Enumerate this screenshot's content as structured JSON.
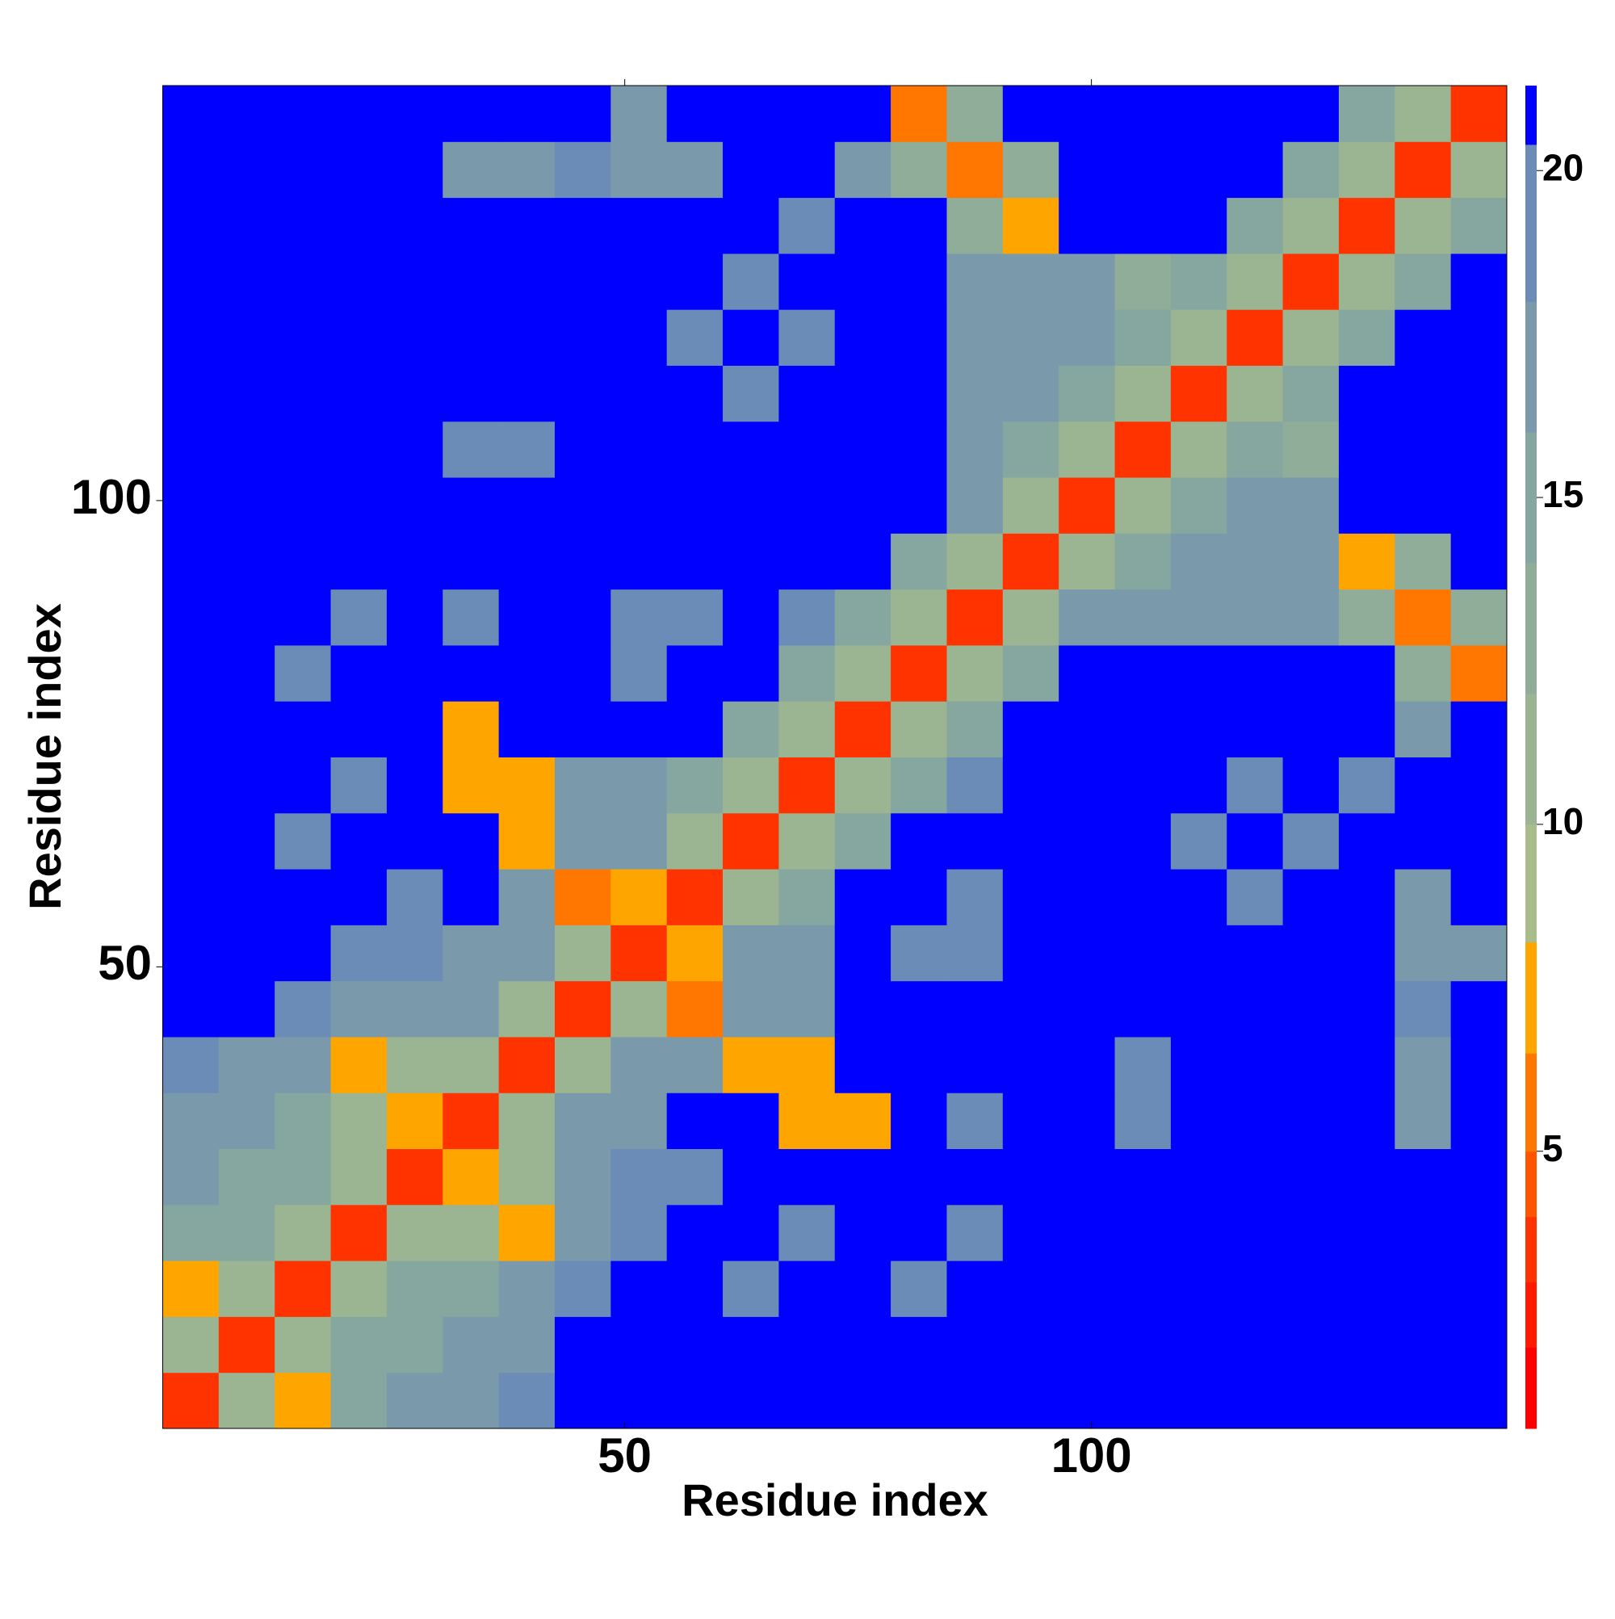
{
  "chart_data": {
    "type": "heatmap",
    "x_label": "Residue index",
    "y_label": "Residue index",
    "x": [
      3.5,
      9.5,
      15.5,
      21.5,
      27.5,
      33.5,
      39.5,
      45.5,
      51.5,
      57.5,
      63.5,
      69.5,
      75.5,
      81.5,
      87.5,
      93.5,
      99.5,
      105.5,
      111.5,
      117.5,
      123.5,
      129.5,
      135.5,
      141.5
    ],
    "y": [
      3.5,
      9.5,
      15.5,
      21.5,
      27.5,
      33.5,
      39.5,
      45.5,
      51.5,
      57.5,
      63.5,
      69.5,
      75.5,
      81.5,
      87.5,
      93.5,
      99.5,
      105.5,
      111.5,
      117.5,
      123.5,
      129.5,
      135.5,
      141.5
    ],
    "z": [
      [
        3,
        11,
        8,
        15,
        16,
        17,
        18,
        21,
        21,
        21,
        21,
        21,
        21,
        21,
        21,
        21,
        21,
        21,
        21,
        21,
        21,
        21,
        21,
        21
      ],
      [
        11,
        3,
        11,
        15,
        15,
        16,
        17,
        21,
        21,
        21,
        21,
        21,
        21,
        21,
        21,
        21,
        21,
        21,
        21,
        21,
        21,
        21,
        21,
        21
      ],
      [
        8,
        11,
        3,
        11,
        15,
        15,
        16,
        18,
        21,
        21,
        19,
        21,
        21,
        19,
        21,
        21,
        21,
        21,
        21,
        21,
        21,
        21,
        21,
        21
      ],
      [
        15,
        15,
        11,
        3,
        11,
        10,
        7,
        17,
        18,
        21,
        21,
        19,
        21,
        21,
        19,
        21,
        21,
        21,
        21,
        21,
        21,
        21,
        21,
        21
      ],
      [
        16,
        15,
        15,
        11,
        3,
        7,
        10,
        17,
        18,
        18,
        21,
        21,
        21,
        21,
        21,
        21,
        21,
        21,
        21,
        21,
        21,
        21,
        21,
        21
      ],
      [
        17,
        16,
        15,
        10,
        7,
        3,
        11,
        17,
        17,
        21,
        21,
        8,
        7,
        21,
        18,
        21,
        21,
        18,
        21,
        21,
        21,
        21,
        17,
        21
      ],
      [
        18,
        17,
        16,
        7,
        10,
        11,
        3,
        11,
        17,
        17,
        8,
        7,
        21,
        21,
        21,
        21,
        21,
        18,
        21,
        21,
        21,
        21,
        17,
        21
      ],
      [
        21,
        21,
        18,
        17,
        17,
        17,
        11,
        3,
        11,
        6,
        16,
        17,
        21,
        21,
        21,
        21,
        21,
        21,
        21,
        21,
        21,
        21,
        18,
        21
      ],
      [
        21,
        21,
        21,
        18,
        18,
        17,
        17,
        11,
        3,
        7,
        16,
        17,
        21,
        18,
        18,
        21,
        21,
        21,
        21,
        21,
        21,
        21,
        17,
        17
      ],
      [
        21,
        21,
        21,
        21,
        18,
        21,
        17,
        6,
        7,
        3,
        11,
        15,
        21,
        21,
        18,
        21,
        21,
        21,
        21,
        18,
        21,
        21,
        17,
        21
      ],
      [
        21,
        21,
        19,
        21,
        21,
        21,
        8,
        16,
        16,
        11,
        3,
        11,
        14,
        21,
        21,
        21,
        21,
        21,
        18,
        21,
        18,
        21,
        21,
        21
      ],
      [
        21,
        21,
        21,
        19,
        21,
        8,
        7,
        17,
        17,
        15,
        11,
        3,
        11,
        14,
        18,
        21,
        21,
        21,
        21,
        18,
        21,
        18,
        21,
        21
      ],
      [
        21,
        21,
        21,
        21,
        21,
        7,
        21,
        21,
        21,
        21,
        14,
        11,
        3,
        11,
        14,
        21,
        21,
        21,
        21,
        21,
        21,
        21,
        17,
        21
      ],
      [
        21,
        21,
        19,
        21,
        21,
        21,
        21,
        21,
        18,
        21,
        21,
        14,
        11,
        3,
        11,
        14,
        21,
        21,
        21,
        21,
        21,
        21,
        12,
        6
      ],
      [
        21,
        21,
        21,
        19,
        21,
        18,
        21,
        21,
        18,
        18,
        21,
        18,
        14,
        11,
        3,
        11,
        17,
        16,
        16,
        16,
        16,
        12,
        6,
        12
      ],
      [
        21,
        21,
        21,
        21,
        21,
        21,
        21,
        21,
        21,
        21,
        21,
        21,
        21,
        14,
        11,
        3,
        11,
        15,
        16,
        16,
        16,
        7,
        12,
        21
      ],
      [
        21,
        21,
        21,
        21,
        21,
        21,
        21,
        21,
        21,
        21,
        21,
        21,
        21,
        21,
        17,
        11,
        3,
        11,
        15,
        16,
        16,
        21,
        21,
        21
      ],
      [
        21,
        21,
        21,
        21,
        21,
        18,
        18,
        21,
        21,
        21,
        21,
        21,
        21,
        21,
        16,
        15,
        11,
        3,
        10,
        15,
        12,
        21,
        21,
        21
      ],
      [
        21,
        21,
        21,
        21,
        21,
        21,
        21,
        21,
        21,
        21,
        18,
        21,
        21,
        21,
        16,
        16,
        15,
        10,
        3,
        11,
        15,
        21,
        21,
        21
      ],
      [
        21,
        21,
        21,
        21,
        21,
        21,
        21,
        21,
        21,
        18,
        21,
        18,
        21,
        21,
        16,
        16,
        16,
        15,
        11,
        3,
        11,
        15,
        21,
        21
      ],
      [
        21,
        21,
        21,
        21,
        21,
        21,
        21,
        21,
        21,
        21,
        18,
        21,
        21,
        21,
        16,
        16,
        16,
        12,
        15,
        11,
        3,
        11,
        15,
        21
      ],
      [
        21,
        21,
        21,
        21,
        21,
        21,
        21,
        21,
        21,
        21,
        21,
        18,
        21,
        21,
        12,
        7,
        21,
        21,
        21,
        15,
        11,
        3,
        11,
        15
      ],
      [
        21,
        21,
        21,
        21,
        21,
        17,
        17,
        18,
        17,
        17,
        21,
        21,
        17,
        12,
        6,
        12,
        21,
        21,
        21,
        21,
        15,
        11,
        3,
        11
      ],
      [
        21,
        21,
        21,
        21,
        21,
        21,
        21,
        21,
        17,
        21,
        21,
        21,
        21,
        6,
        12,
        21,
        21,
        21,
        21,
        21,
        21,
        15,
        11,
        3
      ]
    ],
    "xlim": [
      0.5,
      144.5
    ],
    "ylim": [
      0.5,
      144.5
    ],
    "xticks": [
      50,
      100
    ],
    "yticks": [
      50,
      100
    ],
    "levels": [
      0.76,
      2,
      3,
      4,
      5,
      6.5,
      8.2,
      10,
      12,
      14,
      16,
      18,
      20.4,
      21.3
    ],
    "colors": [
      "#ff0000",
      "#ff1a00",
      "#ff3300",
      "#ff5500",
      "#ff7700",
      "#ffa500",
      "#a9bc8c",
      "#9bb592",
      "#8fad98",
      "#86a6a0",
      "#7a9aac",
      "#6c8cb8",
      "#0000ff"
    ],
    "zticks": [
      5,
      10,
      15,
      20
    ]
  }
}
